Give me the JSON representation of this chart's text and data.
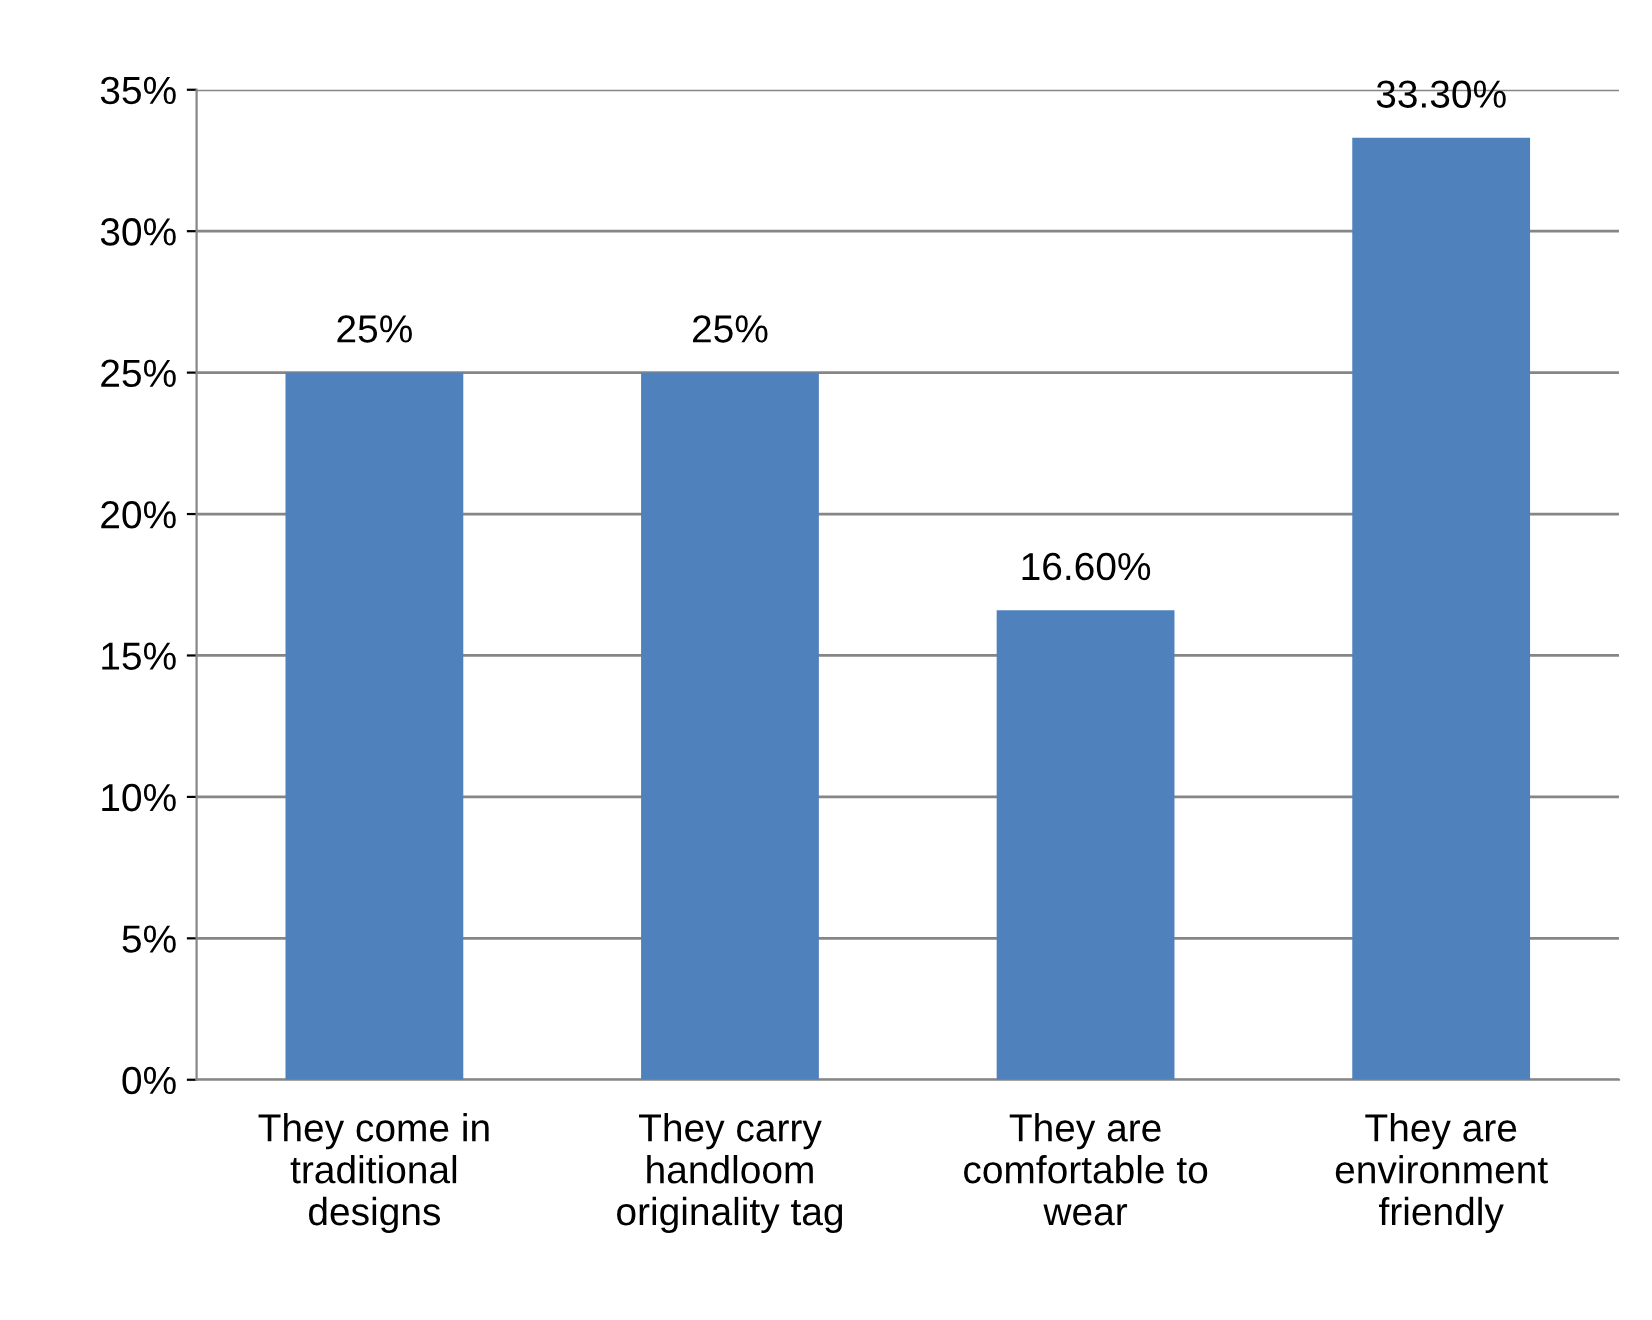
{
  "chart_data": {
    "type": "bar",
    "categories": [
      "They come in\ntraditional\ndesigns",
      "They carry\nhandloom\noriginality tag",
      "They are\ncomfortable to\nwear",
      "They are\nenvironment\nfriendly"
    ],
    "values": [
      25,
      25,
      16.6,
      33.3
    ],
    "value_labels": [
      "25%",
      "25%",
      "16.60%",
      "33.30%"
    ],
    "color": "#4f81bd",
    "ylim": [
      0,
      35
    ],
    "yticks": [
      {
        "value": 0,
        "label": "0%"
      },
      {
        "value": 5,
        "label": "5%"
      },
      {
        "value": 10,
        "label": "10%"
      },
      {
        "value": 15,
        "label": "15%"
      },
      {
        "value": 20,
        "label": "20%"
      },
      {
        "value": 25,
        "label": "25%"
      },
      {
        "value": 30,
        "label": "30%"
      },
      {
        "value": 35,
        "label": "35%"
      }
    ],
    "grid": "y"
  }
}
